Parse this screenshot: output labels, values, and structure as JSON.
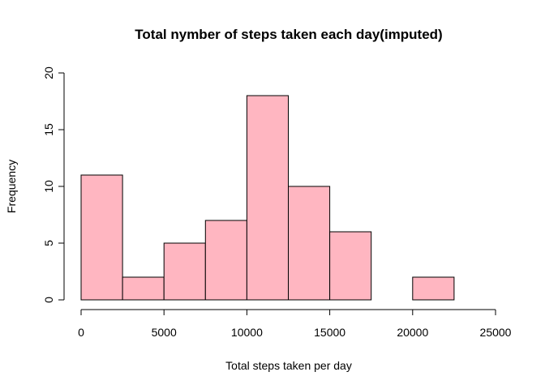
{
  "chart_data": {
    "type": "bar",
    "title": "Total nymber of steps taken each day(imputed)",
    "xlabel": "Total steps taken per day",
    "ylabel": "Frequency",
    "bin_edges": [
      0,
      2500,
      5000,
      7500,
      10000,
      12500,
      15000,
      17500,
      20000,
      22500
    ],
    "values": [
      11,
      2,
      5,
      7,
      18,
      10,
      6,
      0,
      2
    ],
    "xlim": [
      0,
      25000
    ],
    "ylim": [
      0,
      20
    ],
    "x_ticks": [
      0,
      5000,
      10000,
      15000,
      20000,
      25000
    ],
    "y_ticks": [
      0,
      5,
      10,
      15,
      20
    ],
    "bar_color": "#FFB6C1",
    "edge_color": "#000000",
    "grid": false,
    "legend": "none"
  }
}
